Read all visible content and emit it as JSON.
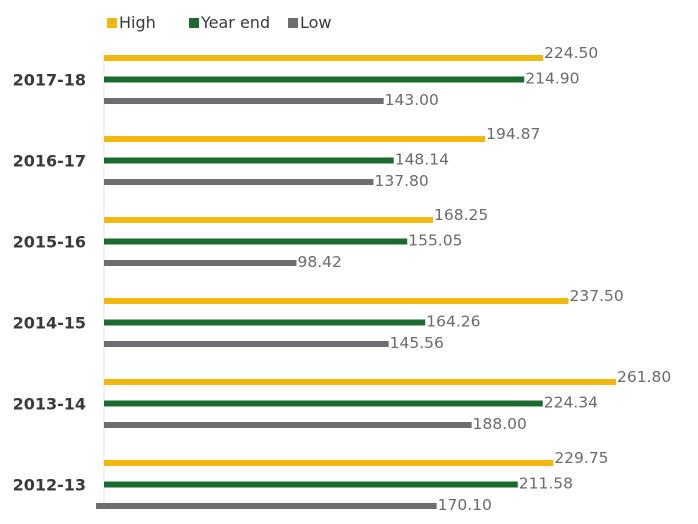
{
  "chart_data": {
    "type": "bar",
    "orientation": "horizontal",
    "categories": [
      "2017-18",
      "2016-17",
      "2015-16",
      "2014-15",
      "2013-14",
      "2012-13"
    ],
    "series": [
      {
        "name": "High",
        "color": "#f2b80f",
        "values": [
          224.5,
          194.87,
          168.25,
          237.5,
          261.8,
          229.75
        ],
        "labels": [
          "224.50",
          "194.87",
          "168.25",
          "237.50",
          "261.80",
          "229.75"
        ]
      },
      {
        "name": "Year end",
        "color": "#1b6b2e",
        "values": [
          214.9,
          148.14,
          155.05,
          164.26,
          224.34,
          211.58
        ],
        "labels": [
          "214.90",
          "148.14",
          "155.05",
          "164.26",
          "224.34",
          "211.58"
        ]
      },
      {
        "name": "Low",
        "color": "#6d6e71",
        "values": [
          143.0,
          137.8,
          98.42,
          145.56,
          188.0,
          170.1
        ],
        "labels": [
          "143.00",
          "137.80",
          "98.42",
          "145.56",
          "188.00",
          "170.10"
        ]
      }
    ],
    "legend_position": "top-left",
    "grid": false,
    "xlim": [
      0,
      261.8
    ]
  }
}
